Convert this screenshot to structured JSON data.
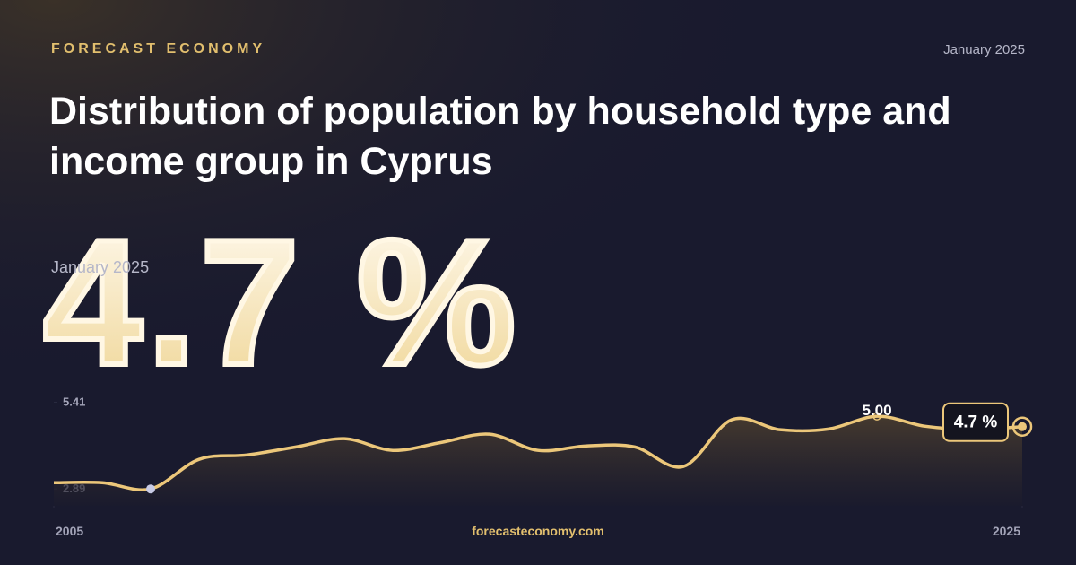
{
  "chart_data": {
    "type": "line",
    "brand": "FORECAST ECONOMY",
    "date": "January 2025",
    "title": "Distribution of population by household type and income group in Cyprus",
    "headline": "4.7 %",
    "headline_date": "January 2025",
    "source": "forecasteconomy.com",
    "x": [
      2005,
      2006,
      2007,
      2008,
      2009,
      2010,
      2011,
      2012,
      2013,
      2014,
      2015,
      2016,
      2017,
      2018,
      2019,
      2020,
      2021,
      2022,
      2023,
      2024,
      2025
    ],
    "series": [
      {
        "color": "#ecc77a",
        "values": [
          3.07,
          3.07,
          2.89,
          3.75,
          3.88,
          4.11,
          4.35,
          4.01,
          4.24,
          4.48,
          4.01,
          4.14,
          4.11,
          3.54,
          4.9,
          4.61,
          4.63,
          5.0,
          4.71,
          4.62,
          4.7
        ],
        "value_labels": [
          null,
          null,
          null,
          null,
          null,
          null,
          null,
          null,
          null,
          null,
          null,
          null,
          null,
          null,
          null,
          null,
          null,
          "5.00",
          null,
          null,
          "4.7 %"
        ]
      }
    ],
    "xlim": [
      2005,
      2025
    ],
    "xticks": [
      2005,
      2025
    ],
    "ylim": [
      2.4,
      5.63
    ],
    "yticks": [
      2.89,
      5.41
    ]
  }
}
